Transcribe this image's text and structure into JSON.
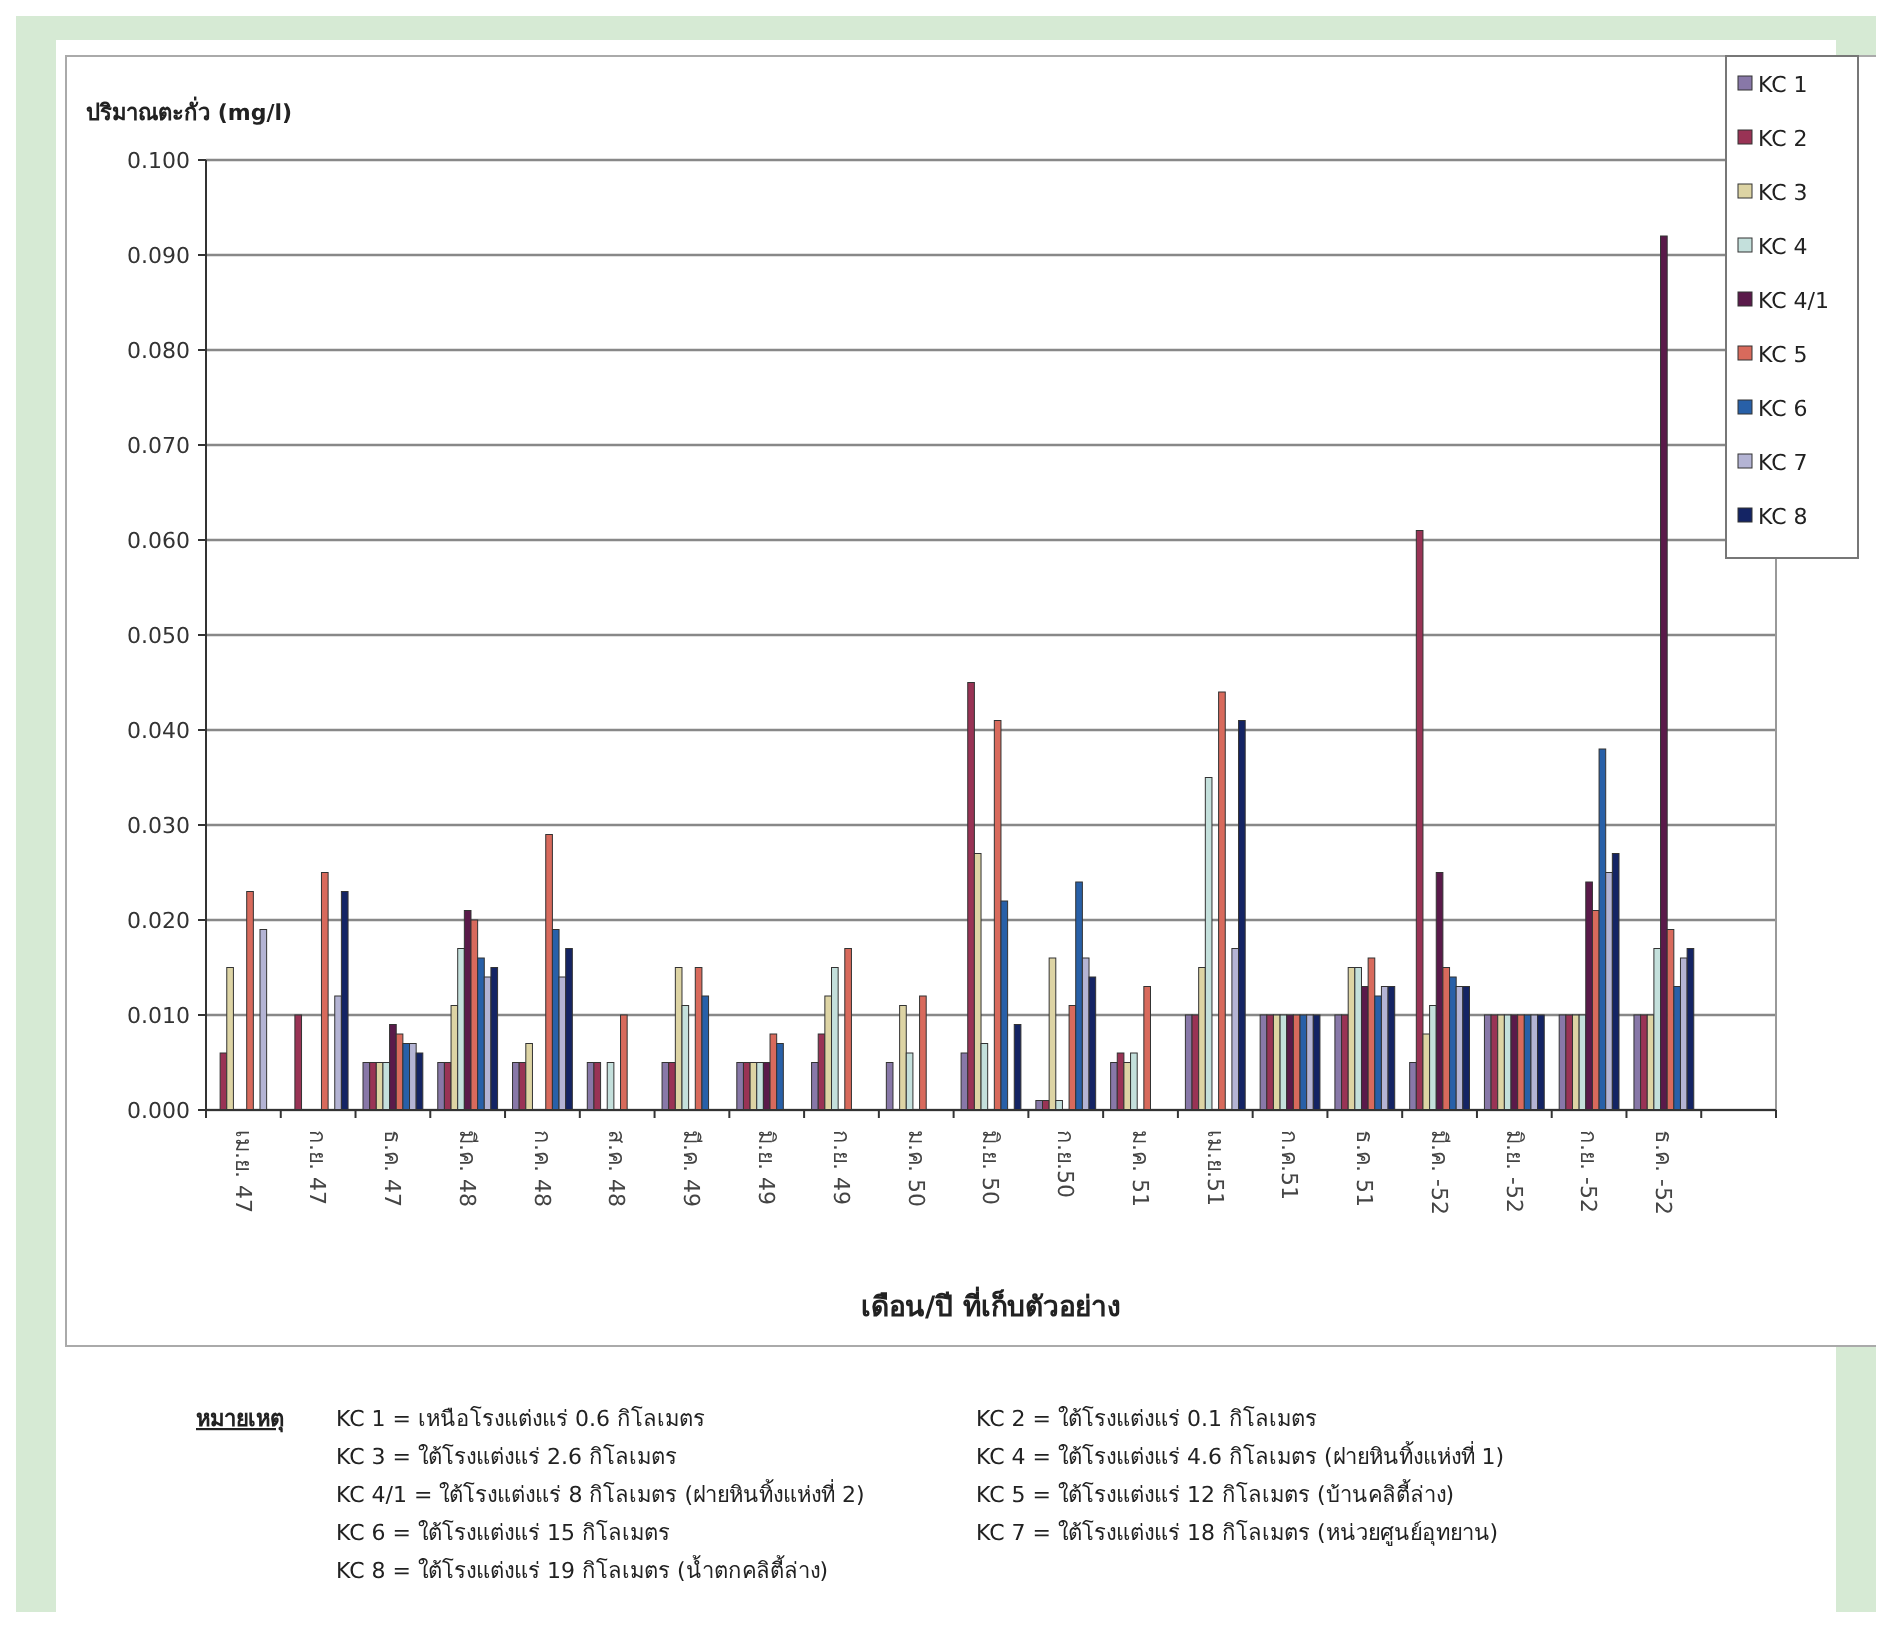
{
  "chart_data": {
    "type": "bar",
    "ylabel": "ปริมาณตะกั่ว (mg/l)",
    "xlabel": "เดือน/ปี ที่เก็บตัวอย่าง",
    "categories": [
      "เม.ย. 47",
      "ก.ย. 47",
      "ธ.ค. 47",
      "มี.ค. 48",
      "ก.ค. 48",
      "ส.ค. 48",
      "มี.ค. 49",
      "มิ.ย. 49",
      "ก.ย. 49",
      "ม.ค. 50",
      "มิ.ย. 50",
      "ก.ย.50",
      "ม.ค. 51",
      "เม.ย.51",
      "ก.ค.51",
      "ธ.ค. 51",
      "มี.ค. -52",
      "มิ.ย. -52",
      "ก.ย. -52",
      "ธ.ค. -52",
      null
    ],
    "series": [
      {
        "name": "KC 1",
        "color": "#8878a8",
        "values": [
          null,
          null,
          0.005,
          0.005,
          0.005,
          0.005,
          0.005,
          0.005,
          0.005,
          0.005,
          0.006,
          0.001,
          0.005,
          0.01,
          0.01,
          0.01,
          0.005,
          0.01,
          0.01,
          0.01,
          null
        ]
      },
      {
        "name": "KC 2",
        "color": "#993355",
        "values": [
          0.006,
          0.01,
          0.005,
          0.005,
          0.005,
          0.005,
          0.005,
          0.005,
          0.008,
          null,
          0.045,
          0.001,
          0.006,
          0.01,
          0.01,
          0.01,
          0.061,
          0.01,
          0.01,
          0.01,
          null
        ]
      },
      {
        "name": "KC 3",
        "color": "#ddd4a4",
        "values": [
          0.015,
          null,
          0.005,
          0.011,
          0.007,
          null,
          0.015,
          0.005,
          0.012,
          0.011,
          0.027,
          0.016,
          0.005,
          0.015,
          0.01,
          0.015,
          0.008,
          0.01,
          0.01,
          0.01,
          null
        ]
      },
      {
        "name": "KC 4",
        "color": "#c4e0dc",
        "values": [
          null,
          null,
          0.005,
          0.017,
          null,
          0.005,
          0.011,
          0.005,
          0.015,
          0.006,
          0.007,
          0.001,
          0.006,
          0.035,
          0.01,
          0.015,
          0.011,
          0.01,
          0.01,
          0.017,
          null
        ]
      },
      {
        "name": "KC 4/1",
        "color": "#5a1a4a",
        "values": [
          null,
          null,
          0.009,
          0.021,
          null,
          null,
          null,
          0.005,
          null,
          null,
          null,
          null,
          null,
          null,
          0.01,
          0.013,
          0.025,
          0.01,
          0.024,
          0.092,
          null
        ]
      },
      {
        "name": "KC 5",
        "color": "#d86a5c",
        "values": [
          0.023,
          0.025,
          0.008,
          0.02,
          0.029,
          0.01,
          0.015,
          0.008,
          0.017,
          0.012,
          0.041,
          0.011,
          0.013,
          0.044,
          0.01,
          0.016,
          0.015,
          0.01,
          0.021,
          0.019,
          null
        ]
      },
      {
        "name": "KC 6",
        "color": "#2860a8",
        "values": [
          null,
          null,
          0.007,
          0.016,
          0.019,
          null,
          0.012,
          0.007,
          null,
          null,
          0.022,
          0.024,
          null,
          null,
          0.01,
          0.012,
          0.014,
          0.01,
          0.038,
          0.013,
          null
        ]
      },
      {
        "name": "KC 7",
        "color": "#b4b4d4",
        "values": [
          0.019,
          0.012,
          0.007,
          0.014,
          0.014,
          null,
          null,
          null,
          null,
          null,
          null,
          0.016,
          null,
          0.017,
          0.01,
          0.013,
          0.013,
          0.01,
          0.025,
          0.016,
          null
        ]
      },
      {
        "name": "KC 8",
        "color": "#142464",
        "values": [
          null,
          0.023,
          0.006,
          0.015,
          0.017,
          null,
          null,
          null,
          null,
          null,
          0.009,
          0.014,
          null,
          0.041,
          0.01,
          0.013,
          0.013,
          0.01,
          0.027,
          0.017,
          null
        ]
      }
    ],
    "ylim": [
      0,
      0.1
    ],
    "yticks": [
      {
        "value": 0,
        "label": "0.000"
      },
      {
        "value": 0.01,
        "label": "0.010"
      },
      {
        "value": 0.02,
        "label": "0.020"
      },
      {
        "value": 0.03,
        "label": "0.030"
      },
      {
        "value": 0.04,
        "label": "0.040"
      },
      {
        "value": 0.05,
        "label": "0.050"
      },
      {
        "value": 0.06,
        "label": "0.060"
      },
      {
        "value": 0.07,
        "label": "0.070"
      },
      {
        "value": 0.08,
        "label": "0.080"
      },
      {
        "value": 0.09,
        "label": "0.090"
      },
      {
        "value": 0.1,
        "label": "0.100"
      }
    ],
    "grid": "y",
    "legend": "top right",
    "annotations": [
      "หมายเหตุ",
      "KC 1 = เหนือโรงแต่งแร่ 0.6 กิโลเมตร",
      "KC 2 = ใต้โรงแต่งแร่ 0.1 กิโลเมตร",
      "KC 3 = ใต้โรงแต่งแร่ 2.6 กิโลเมตร",
      "KC 4 = ใต้โรงแต่งแร่ 4.6 กิโลเมตร (ฝายหินทิ้งแห่งที่ 1)",
      "KC 4/1 = ใต้โรงแต่งแร่ 8 กิโลเมตร (ฝายหินทิ้งแห่งที่ 2)",
      "KC 5 = ใต้โรงแต่งแร่ 12 กิโลเมตร (บ้านคลิตี้ล่าง)",
      "KC 6 = ใต้โรงแต่งแร่ 15 กิโลเมตร",
      "KC 7 = ใต้โรงแต่งแร่ 18 กิโลเมตร (หน่วยศูนย์อุทยาน)",
      "KC 8 = ใต้โรงแต่งแร่ 19 กิโลเมตร (น้ำตกคลิตี้ล่าง)"
    ]
  }
}
